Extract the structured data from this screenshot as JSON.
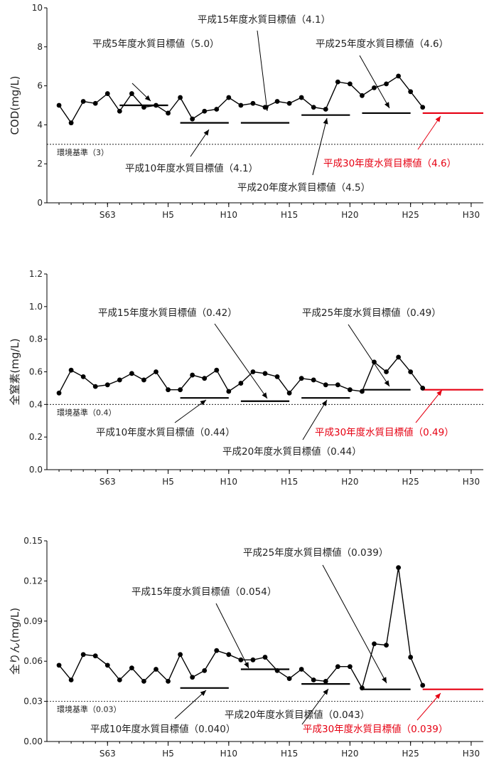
{
  "chart_data": [
    {
      "type": "line",
      "ylabel": "COD(mg/L)",
      "ylim": [
        0,
        10
      ],
      "yticks": [
        "0",
        "2",
        "4",
        "6",
        "8",
        "10"
      ],
      "xlim": [
        1983,
        2019
      ],
      "xtick_labels": [
        {
          "x": 1988,
          "label": "S63"
        },
        {
          "x": 1993,
          "label": "H5"
        },
        {
          "x": 1998,
          "label": "H10"
        },
        {
          "x": 2003,
          "label": "H15"
        },
        {
          "x": 2008,
          "label": "H20"
        },
        {
          "x": 2013,
          "label": "H25"
        },
        {
          "x": 2018,
          "label": "H30"
        }
      ],
      "series": [
        {
          "x": [
            1984,
            1985,
            1986,
            1987,
            1988,
            1989,
            1990,
            1991,
            1992,
            1993,
            1994,
            1995,
            1996,
            1997,
            1998,
            1999,
            2000,
            2001,
            2002,
            2003,
            2004,
            2005,
            2006,
            2007,
            2008,
            2009,
            2010,
            2011,
            2012,
            2013,
            2014
          ],
          "values": [
            5.0,
            4.1,
            5.2,
            5.1,
            5.6,
            4.7,
            5.6,
            4.9,
            5.0,
            4.6,
            5.4,
            4.3,
            4.7,
            4.8,
            5.4,
            5.0,
            5.1,
            4.9,
            5.2,
            5.1,
            5.4,
            4.9,
            4.8,
            6.2,
            6.1,
            5.5,
            5.9,
            6.1,
            6.5,
            5.7,
            4.9
          ]
        }
      ],
      "targets": [
        {
          "from": 1989,
          "to": 1993,
          "value": 5.0,
          "label": "平成5年度水質目標値（5.0）"
        },
        {
          "from": 1994,
          "to": 1998,
          "value": 4.1,
          "label": "平成10年度水質目標値（4.1）"
        },
        {
          "from": 1999,
          "to": 2003,
          "value": 4.1,
          "label": "平成15年度水質目標値（4.1）"
        },
        {
          "from": 2004,
          "to": 2008,
          "value": 4.5,
          "label": "平成20年度水質目標値（4.5）"
        },
        {
          "from": 2009,
          "to": 2013,
          "value": 4.6,
          "label": "平成25年度水質目標値（4.6）"
        },
        {
          "from": 2014,
          "to": 2019,
          "value": 4.6,
          "label": "平成30年度水質目標値（4.6）",
          "color": "#e60012"
        }
      ],
      "env_standard": {
        "value": 3,
        "label": "環境基準（3）"
      }
    },
    {
      "type": "line",
      "ylabel": "全窒素(mg/L)",
      "ylim": [
        0,
        1.2
      ],
      "yticks": [
        "0.0",
        "0.2",
        "0.4",
        "0.6",
        "0.8",
        "1.0",
        "1.2"
      ],
      "xlim": [
        1983,
        2019
      ],
      "xtick_labels": [
        {
          "x": 1988,
          "label": "S63"
        },
        {
          "x": 1993,
          "label": "H5"
        },
        {
          "x": 1998,
          "label": "H10"
        },
        {
          "x": 2003,
          "label": "H15"
        },
        {
          "x": 2008,
          "label": "H20"
        },
        {
          "x": 2013,
          "label": "H25"
        },
        {
          "x": 2018,
          "label": "H30"
        }
      ],
      "series": [
        {
          "x": [
            1984,
            1985,
            1986,
            1987,
            1988,
            1989,
            1990,
            1991,
            1992,
            1993,
            1994,
            1995,
            1996,
            1997,
            1998,
            1999,
            2000,
            2001,
            2002,
            2003,
            2004,
            2005,
            2006,
            2007,
            2008,
            2009,
            2010,
            2011,
            2012,
            2013,
            2014
          ],
          "values": [
            0.47,
            0.61,
            0.57,
            0.51,
            0.52,
            0.55,
            0.59,
            0.55,
            0.6,
            0.49,
            0.49,
            0.58,
            0.56,
            0.61,
            0.48,
            0.53,
            0.6,
            0.59,
            0.57,
            0.47,
            0.56,
            0.55,
            0.52,
            0.52,
            0.49,
            0.48,
            0.66,
            0.6,
            0.69,
            0.6,
            0.5
          ]
        }
      ],
      "targets": [
        {
          "from": 1994,
          "to": 1998,
          "value": 0.44,
          "label": "平成10年度水質目標値（0.44）"
        },
        {
          "from": 1999,
          "to": 2003,
          "value": 0.42,
          "label": "平成15年度水質目標値（0.42）"
        },
        {
          "from": 2004,
          "to": 2008,
          "value": 0.44,
          "label": "平成20年度水質目標値（0.44）"
        },
        {
          "from": 2009,
          "to": 2013,
          "value": 0.49,
          "label": "平成25年度水質目標値（0.49）"
        },
        {
          "from": 2014,
          "to": 2019,
          "value": 0.49,
          "label": "平成30年度水質目標値（0.49）",
          "color": "#e60012"
        }
      ],
      "env_standard": {
        "value": 0.4,
        "label": "環境基準（0.4）"
      }
    },
    {
      "type": "line",
      "ylabel": "全りん(mg/L)",
      "ylim": [
        0,
        0.15
      ],
      "yticks": [
        "0.00",
        "0.03",
        "0.06",
        "0.09",
        "0.12",
        "0.15"
      ],
      "xlim": [
        1983,
        2019
      ],
      "xtick_labels": [
        {
          "x": 1988,
          "label": "S63"
        },
        {
          "x": 1993,
          "label": "H5"
        },
        {
          "x": 1998,
          "label": "H10"
        },
        {
          "x": 2003,
          "label": "H15"
        },
        {
          "x": 2008,
          "label": "H20"
        },
        {
          "x": 2013,
          "label": "H25"
        },
        {
          "x": 2018,
          "label": "H30"
        }
      ],
      "series": [
        {
          "x": [
            1984,
            1985,
            1986,
            1987,
            1988,
            1989,
            1990,
            1991,
            1992,
            1993,
            1994,
            1995,
            1996,
            1997,
            1998,
            1999,
            2000,
            2001,
            2002,
            2003,
            2004,
            2005,
            2006,
            2007,
            2008,
            2009,
            2010,
            2011,
            2012,
            2013,
            2014
          ],
          "values": [
            0.057,
            0.046,
            0.065,
            0.064,
            0.057,
            0.046,
            0.055,
            0.045,
            0.054,
            0.045,
            0.065,
            0.048,
            0.053,
            0.068,
            0.065,
            0.061,
            0.061,
            0.063,
            0.053,
            0.047,
            0.054,
            0.046,
            0.045,
            0.056,
            0.056,
            0.04,
            0.073,
            0.072,
            0.13,
            0.063,
            0.042
          ]
        }
      ],
      "targets": [
        {
          "from": 1994,
          "to": 1998,
          "value": 0.04,
          "label": "平成10年度水質目標値（0.040）"
        },
        {
          "from": 1999,
          "to": 2003,
          "value": 0.054,
          "label": "平成15年度水質目標値（0.054）"
        },
        {
          "from": 2004,
          "to": 2008,
          "value": 0.043,
          "label": "平成20年度水質目標値（0.043）"
        },
        {
          "from": 2009,
          "to": 2013,
          "value": 0.039,
          "label": "平成25年度水質目標値（0.039）"
        },
        {
          "from": 2014,
          "to": 2019,
          "value": 0.039,
          "label": "平成30年度水質目標値（0.039）",
          "color": "#e60012"
        }
      ],
      "env_standard": {
        "value": 0.03,
        "label": "環境基準（0.03）"
      }
    }
  ]
}
